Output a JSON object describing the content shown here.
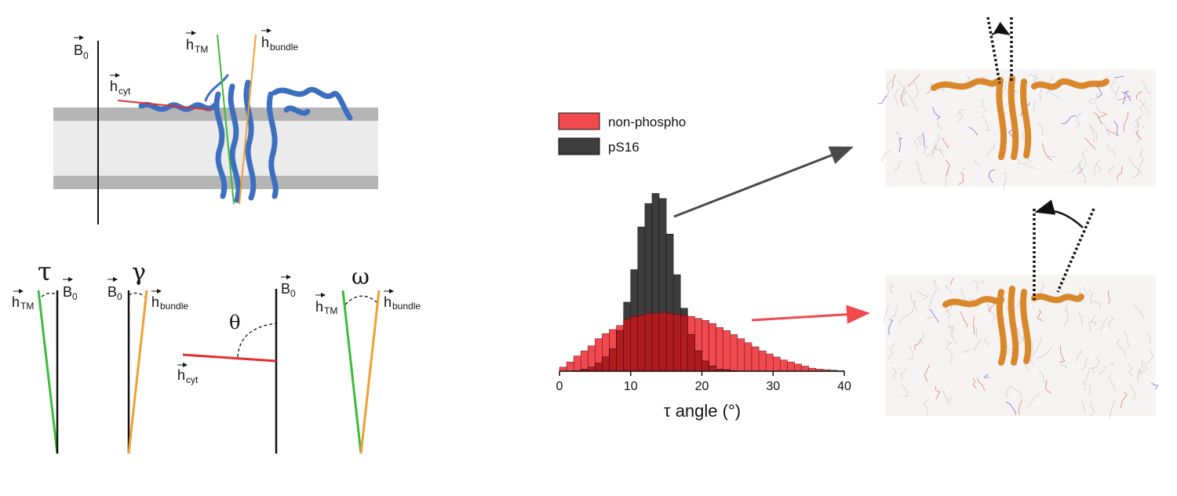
{
  "schematic": {
    "field_vec": "B",
    "field_sub": "0",
    "tm_vec": "h",
    "tm_sub": "TM",
    "bundle_vec": "h",
    "bundle_sub": "bundle",
    "cyt_vec": "h",
    "cyt_sub": "cyt"
  },
  "angles": {
    "tau": "τ",
    "gamma": "γ",
    "theta": "θ",
    "omega": "ω"
  },
  "colors": {
    "non_phospho": "#f04a4f",
    "pS16": "#3d3d3d",
    "overlap": "#b01b20",
    "tm_helix": "#3dbb3b",
    "bundle_axis": "#f0a030",
    "cyt_helix": "#e03030",
    "protein_blue": "#3d6fc0",
    "protein_orange": "#d8872a",
    "membrane_dark": "#b5b5b5",
    "membrane_light": "#ebebeb"
  },
  "chart_data": {
    "type": "bar",
    "xlabel": "τ angle (°)",
    "xlim": [
      0,
      40
    ],
    "ylim": [
      0,
      0.19
    ],
    "x_ticks": [
      "0",
      "10",
      "20",
      "30",
      "40"
    ],
    "bin_width": 1,
    "bins_start": 0,
    "legend_position": "upper-left",
    "series": [
      {
        "name": "non-phospho",
        "values": [
          0.004,
          0.009,
          0.015,
          0.02,
          0.025,
          0.032,
          0.037,
          0.041,
          0.045,
          0.051,
          0.054,
          0.055,
          0.057,
          0.057,
          0.058,
          0.057,
          0.056,
          0.055,
          0.054,
          0.052,
          0.05,
          0.047,
          0.043,
          0.04,
          0.036,
          0.032,
          0.028,
          0.024,
          0.02,
          0.017,
          0.014,
          0.011,
          0.009,
          0.007,
          0.005,
          0.003,
          0.002,
          0.0015,
          0.001,
          0.0005
        ]
      },
      {
        "name": "pS16",
        "values": [
          0.0,
          0.0,
          0.0005,
          0.002,
          0.004,
          0.008,
          0.014,
          0.022,
          0.04,
          0.068,
          0.1,
          0.142,
          0.165,
          0.175,
          0.17,
          0.135,
          0.095,
          0.062,
          0.036,
          0.02,
          0.01,
          0.005,
          0.002,
          0.0015,
          0.0005,
          0,
          0,
          0,
          0,
          0,
          0,
          0,
          0,
          0,
          0,
          0,
          0,
          0,
          0,
          0
        ]
      }
    ]
  }
}
